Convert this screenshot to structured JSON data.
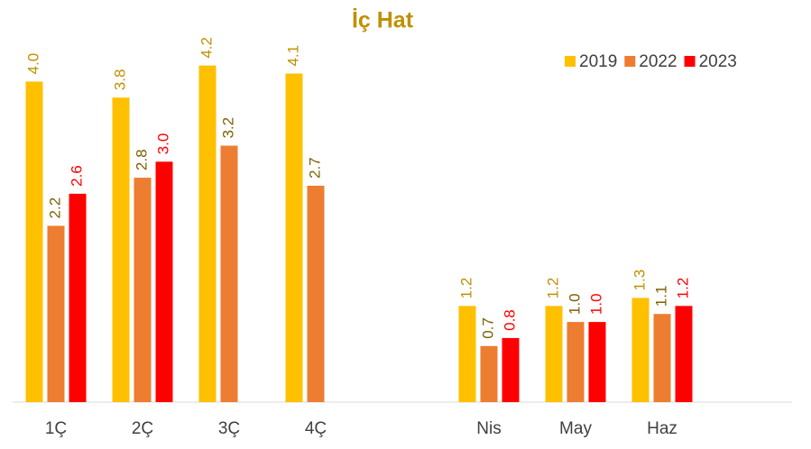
{
  "chart_data": {
    "type": "bar",
    "title": "İç Hat",
    "title_color": "#C09000",
    "categories": [
      "1Ç",
      "2Ç",
      "3Ç",
      "4Ç",
      null,
      "Nis",
      "May",
      "Haz",
      null
    ],
    "series": [
      {
        "name": "2019",
        "color": "#FFC000",
        "label_color": "#BF9000",
        "values": [
          4.0,
          3.8,
          4.2,
          4.1,
          null,
          1.2,
          1.2,
          1.3,
          null
        ],
        "value_labels": [
          "4.0",
          "3.8",
          "4.2",
          "4.1",
          null,
          "1.2",
          "1.2",
          "1.3",
          null
        ]
      },
      {
        "name": "2022",
        "color": "#ED7D31",
        "label_color": "#7F6000",
        "values": [
          2.2,
          2.8,
          3.2,
          2.7,
          null,
          0.7,
          1.0,
          1.1,
          null
        ],
        "value_labels": [
          "2.2",
          "2.8",
          "3.2",
          "2.7",
          null,
          "0.7",
          "1.0",
          "1.1",
          null
        ]
      },
      {
        "name": "2023",
        "color": "#FF0000",
        "label_color": "#FF0000",
        "values": [
          2.6,
          3.0,
          null,
          null,
          null,
          0.8,
          1.0,
          1.2,
          null
        ],
        "value_labels": [
          "2.6",
          "3.0",
          null,
          null,
          null,
          "0.8",
          "1.0",
          "1.2",
          null
        ]
      }
    ],
    "ylim": [
      0,
      4.5
    ],
    "legend": "top-right"
  }
}
